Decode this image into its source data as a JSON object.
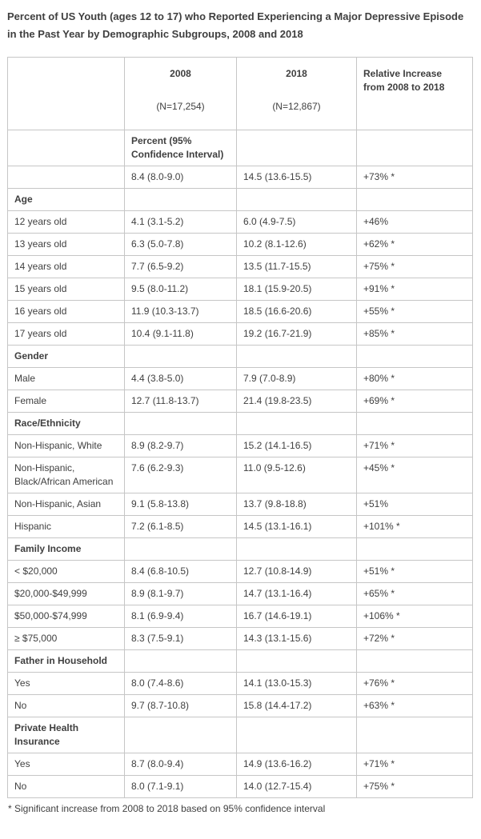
{
  "colors": {
    "text": "#3f3f3f",
    "border": "#c6c6c6",
    "background": "#ffffff"
  },
  "chart_data": {
    "type": "table",
    "title": "Percent of US Youth (ages 12 to 17) who Reported Experiencing a Major Depressive Episode in the Past Year by Demographic Subgroups, 2008 and 2018",
    "header": {
      "empty": "",
      "y2008": "2008",
      "n2008": "(N=17,254)",
      "y2018": "2018",
      "n2018": "(N=12,867)",
      "relative": "Relative Increase from 2008 to 2018"
    },
    "columns": [
      "",
      "2008 (N=17,254)",
      "2018 (N=12,867)",
      "Relative Increase from 2008 to 2018"
    ],
    "rows": [
      {
        "type": "subheader",
        "label": "",
        "percent_header": "Percent (95% Confidence Interval)"
      },
      {
        "type": "data",
        "label": "",
        "v2008": "8.4 (8.0-9.0)",
        "v2018": "14.5 (13.6-15.5)",
        "change": "+73% *"
      },
      {
        "type": "section",
        "label": "Age"
      },
      {
        "type": "data",
        "label": "12 years old",
        "v2008": "4.1 (3.1-5.2)",
        "v2018": "6.0 (4.9-7.5)",
        "change": "+46%"
      },
      {
        "type": "data",
        "label": "13 years old",
        "v2008": "6.3 (5.0-7.8)",
        "v2018": "10.2 (8.1-12.6)",
        "change": "+62% *"
      },
      {
        "type": "data",
        "label": "14 years old",
        "v2008": "7.7 (6.5-9.2)",
        "v2018": "13.5 (11.7-15.5)",
        "change": "+75% *"
      },
      {
        "type": "data",
        "label": "15 years old",
        "v2008": "9.5 (8.0-11.2)",
        "v2018": "18.1 (15.9-20.5)",
        "change": "+91% *"
      },
      {
        "type": "data",
        "label": "16 years old",
        "v2008": "11.9 (10.3-13.7)",
        "v2018": "18.5 (16.6-20.6)",
        "change": "+55% *"
      },
      {
        "type": "data",
        "label": "17 years old",
        "v2008": "10.4 (9.1-11.8)",
        "v2018": "19.2 (16.7-21.9)",
        "change": "+85% *"
      },
      {
        "type": "section",
        "label": "Gender"
      },
      {
        "type": "data",
        "label": "Male",
        "v2008": "4.4 (3.8-5.0)",
        "v2018": "7.9 (7.0-8.9)",
        "change": "+80% *"
      },
      {
        "type": "data",
        "label": "Female",
        "v2008": "12.7 (11.8-13.7)",
        "v2018": "21.4 (19.8-23.5)",
        "change": "+69% *"
      },
      {
        "type": "section",
        "label": "Race/Ethnicity"
      },
      {
        "type": "data",
        "label": "Non-Hispanic, White",
        "v2008": "8.9 (8.2-9.7)",
        "v2018": "15.2 (14.1-16.5)",
        "change": "+71% *"
      },
      {
        "type": "data",
        "label": "Non-Hispanic, Black/African American",
        "v2008": "7.6 (6.2-9.3)",
        "v2018": "11.0 (9.5-12.6)",
        "change": "+45% *"
      },
      {
        "type": "data",
        "label": "Non-Hispanic, Asian",
        "v2008": "9.1 (5.8-13.8)",
        "v2018": "13.7 (9.8-18.8)",
        "change": "+51%"
      },
      {
        "type": "data",
        "label": "Hispanic",
        "v2008": "7.2 (6.1-8.5)",
        "v2018": "14.5 (13.1-16.1)",
        "change": "+101% *"
      },
      {
        "type": "section",
        "label": "Family Income"
      },
      {
        "type": "data",
        "label": "< $20,000",
        "v2008": "8.4 (6.8-10.5)",
        "v2018": "12.7 (10.8-14.9)",
        "change": "+51% *"
      },
      {
        "type": "data",
        "label": "$20,000-$49,999",
        "v2008": "8.9 (8.1-9.7)",
        "v2018": "14.7 (13.1-16.4)",
        "change": "+65% *"
      },
      {
        "type": "data",
        "label": "$50,000-$74,999",
        "v2008": "8.1 (6.9-9.4)",
        "v2018": "16.7 (14.6-19.1)",
        "change": "+106% *"
      },
      {
        "type": "data",
        "label": "≥ $75,000",
        "v2008": "8.3 (7.5-9.1)",
        "v2018": "14.3 (13.1-15.6)",
        "change": "+72% *"
      },
      {
        "type": "section",
        "label": "Father in Household"
      },
      {
        "type": "data",
        "label": "Yes",
        "v2008": "8.0 (7.4-8.6)",
        "v2018": "14.1 (13.0-15.3)",
        "change": "+76% *"
      },
      {
        "type": "data",
        "label": "No",
        "v2008": "9.7 (8.7-10.8)",
        "v2018": "15.8 (14.4-17.2)",
        "change": "+63% *"
      },
      {
        "type": "section",
        "label": "Private Health Insurance"
      },
      {
        "type": "data",
        "label": "Yes",
        "v2008": "8.7 (8.0-9.4)",
        "v2018": "14.9 (13.6-16.2)",
        "change": "+71% *"
      },
      {
        "type": "data",
        "label": "No",
        "v2008": "8.0 (7.1-9.1)",
        "v2018": "14.0 (12.7-15.4)",
        "change": "+75% *"
      }
    ],
    "footnote": "* Significant increase from 2008 to 2018 based on 95% confidence interval"
  }
}
